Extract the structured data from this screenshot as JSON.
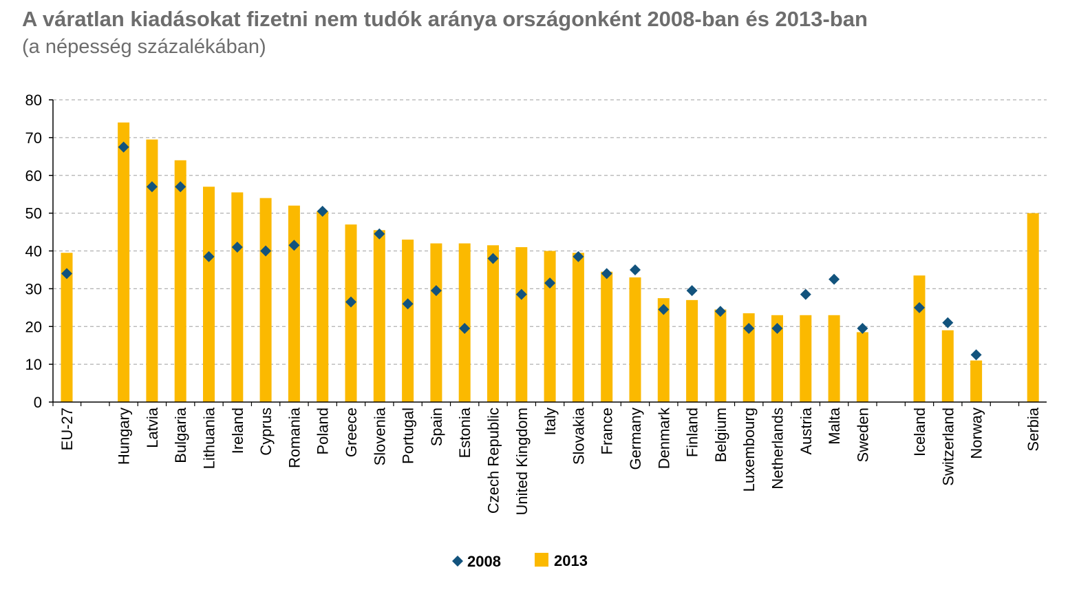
{
  "chart_data": {
    "type": "bar",
    "title": "A váratlan kiadásokat fizetni nem tudók aránya országonként 2008-ban és 2013-ban",
    "subtitle": "(a népesség százalékában)",
    "ylim": [
      0,
      80
    ],
    "yticks": [
      0,
      10,
      20,
      30,
      40,
      50,
      60,
      70,
      80
    ],
    "grid": true,
    "legend_position": "bottom-center",
    "categories": [
      "EU-27",
      "Hungary",
      "Latvia",
      "Bulgaria",
      "Lithuania",
      "Ireland",
      "Cyprus",
      "Romania",
      "Poland",
      "Greece",
      "Slovenia",
      "Portugal",
      "Spain",
      "Estonia",
      "Czech Republic",
      "United Kingdom",
      "Italy",
      "Slovakia",
      "France",
      "Germany",
      "Denmark",
      "Finland",
      "Belgium",
      "Luxembourg",
      "Netherlands",
      "Austria",
      "Malta",
      "Sweden",
      "Iceland",
      "Switzerland",
      "Norway",
      "Serbia"
    ],
    "groups_after_index": [
      0,
      27,
      30
    ],
    "series": [
      {
        "name": "2013",
        "kind": "bar",
        "color": "#fbb900",
        "values": [
          39.5,
          74.0,
          69.5,
          64.0,
          57.0,
          55.5,
          54.0,
          52.0,
          50.5,
          47.0,
          45.5,
          43.0,
          42.0,
          42.0,
          41.5,
          41.0,
          40.0,
          39.5,
          34.5,
          33.0,
          27.5,
          27.0,
          24.5,
          23.5,
          23.0,
          23.0,
          23.0,
          18.5,
          33.5,
          19.0,
          11.0,
          50.0
        ]
      },
      {
        "name": "2008",
        "kind": "marker",
        "color": "#12537d",
        "values": [
          34.0,
          67.5,
          57.0,
          57.0,
          38.5,
          41.0,
          40.0,
          41.5,
          50.5,
          26.5,
          44.5,
          26.0,
          29.5,
          19.5,
          38.0,
          28.5,
          31.5,
          38.5,
          34.0,
          35.0,
          24.5,
          29.5,
          24.0,
          19.5,
          19.5,
          28.5,
          32.5,
          19.5,
          25.0,
          21.0,
          12.5,
          null
        ]
      }
    ],
    "legend": [
      {
        "label": "2008",
        "symbol": "diamond",
        "color": "#12537d"
      },
      {
        "label": "2013",
        "symbol": "square",
        "color": "#fbb900"
      }
    ]
  },
  "colors": {
    "title": "#6d6d6d",
    "grid": "#b0b0b0",
    "axis": "#000000"
  }
}
